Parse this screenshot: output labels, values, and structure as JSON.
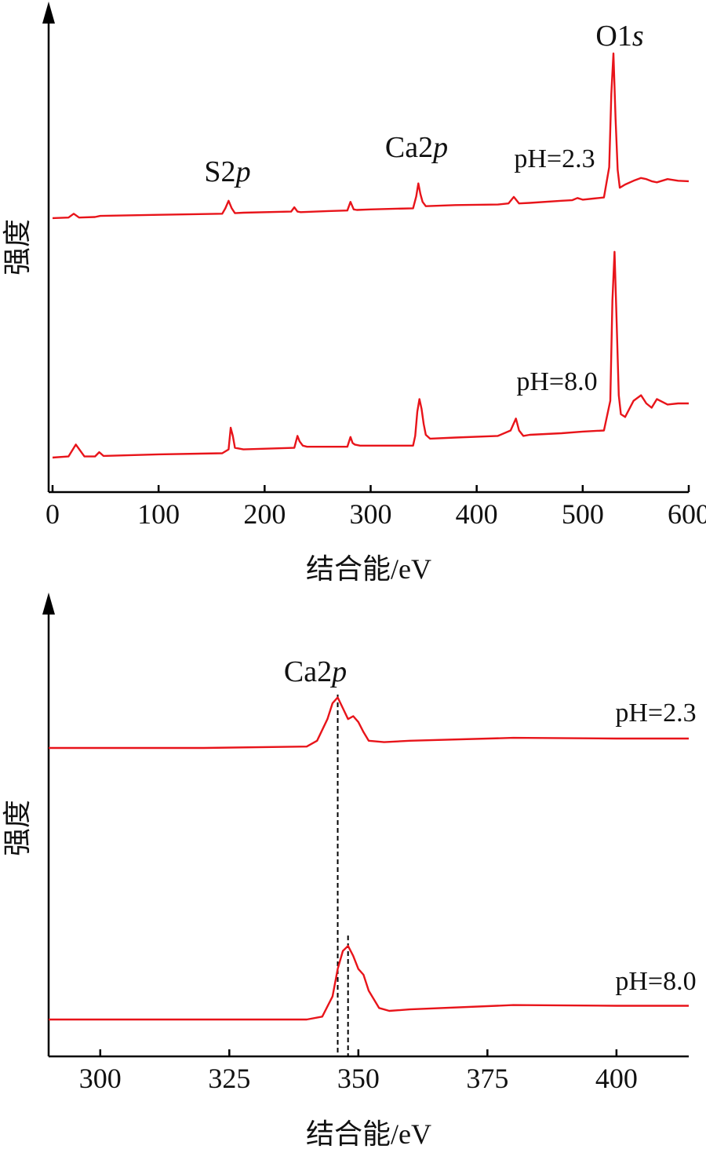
{
  "chart_data": [
    {
      "type": "line",
      "xlabel": "结合能/eV",
      "ylabel": "强度",
      "xlim": [
        0,
        600
      ],
      "xticks": [
        "0",
        "100",
        "200",
        "300",
        "400",
        "500",
        "600"
      ],
      "grid": false,
      "annotations": [
        {
          "text": "S2",
          "italic": "p",
          "x": 167
        },
        {
          "text": "Ca2",
          "italic": "p",
          "x": 345
        },
        {
          "text": "O1",
          "italic": "s",
          "x": 530
        }
      ],
      "series": [
        {
          "name": "pH=2.3",
          "color": "#e8141a",
          "x": [
            0,
            15,
            20,
            25,
            40,
            45,
            100,
            160,
            163,
            166,
            169,
            172,
            180,
            225,
            228,
            231,
            234,
            260,
            278,
            281,
            284,
            287,
            300,
            340,
            343,
            345,
            347,
            349,
            352,
            380,
            420,
            430,
            435,
            440,
            450,
            480,
            490,
            495,
            500,
            510,
            520,
            525,
            527,
            529,
            531,
            533,
            535,
            540,
            548,
            555,
            560,
            565,
            570,
            580,
            590,
            600
          ],
          "y": [
            0.06,
            0.07,
            0.14,
            0.07,
            0.08,
            0.1,
            0.12,
            0.14,
            0.24,
            0.38,
            0.24,
            0.15,
            0.16,
            0.18,
            0.26,
            0.18,
            0.17,
            0.19,
            0.2,
            0.36,
            0.22,
            0.21,
            0.22,
            0.24,
            0.46,
            0.7,
            0.5,
            0.36,
            0.28,
            0.3,
            0.31,
            0.33,
            0.45,
            0.33,
            0.34,
            0.38,
            0.39,
            0.43,
            0.4,
            0.42,
            0.44,
            1.0,
            2.35,
            3.1,
            1.9,
            0.95,
            0.62,
            0.68,
            0.75,
            0.8,
            0.78,
            0.74,
            0.72,
            0.78,
            0.75,
            0.74
          ]
        },
        {
          "name": "pH=8.0",
          "color": "#e8141a",
          "x": [
            0,
            15,
            22,
            30,
            40,
            44,
            48,
            100,
            160,
            166,
            168,
            170,
            172,
            180,
            228,
            231,
            233,
            236,
            240,
            278,
            281,
            283,
            285,
            290,
            340,
            342,
            344,
            346,
            348,
            350,
            352,
            356,
            380,
            420,
            432,
            437,
            440,
            444,
            450,
            480,
            500,
            520,
            526,
            528,
            530,
            532,
            534,
            536,
            540,
            548,
            555,
            560,
            565,
            570,
            580,
            590,
            600
          ],
          "y": [
            0.0,
            0.02,
            0.24,
            0.02,
            0.02,
            0.1,
            0.03,
            0.06,
            0.08,
            0.15,
            0.55,
            0.4,
            0.18,
            0.15,
            0.18,
            0.4,
            0.3,
            0.22,
            0.2,
            0.2,
            0.38,
            0.27,
            0.24,
            0.22,
            0.22,
            0.4,
            0.85,
            1.08,
            0.9,
            0.62,
            0.42,
            0.35,
            0.37,
            0.4,
            0.5,
            0.72,
            0.5,
            0.4,
            0.42,
            0.45,
            0.48,
            0.5,
            1.05,
            2.9,
            3.8,
            2.5,
            1.15,
            0.8,
            0.75,
            1.05,
            1.15,
            1.0,
            0.92,
            1.08,
            0.98,
            1.0,
            1.0
          ]
        }
      ]
    },
    {
      "type": "line",
      "xlabel": "结合能/eV",
      "ylabel": "强度",
      "xlim": [
        290,
        414
      ],
      "xticks": [
        "300",
        "325",
        "350",
        "375",
        "400"
      ],
      "grid": false,
      "annotations": [
        {
          "text": "Ca2",
          "italic": "p",
          "x": 345.5
        }
      ],
      "reference_lines_x": [
        346,
        348
      ],
      "series": [
        {
          "name": "pH=2.3",
          "color": "#e8141a",
          "x": [
            290,
            300,
            320,
            340,
            342,
            344,
            345,
            346,
            347,
            348,
            349,
            350,
            351,
            352,
            355,
            360,
            380,
            400,
            414
          ],
          "y": [
            0.0,
            0.0,
            0.0,
            0.02,
            0.1,
            0.4,
            0.62,
            0.7,
            0.55,
            0.4,
            0.44,
            0.36,
            0.22,
            0.1,
            0.08,
            0.1,
            0.14,
            0.13,
            0.13
          ]
        },
        {
          "name": "pH=8.0",
          "color": "#e8141a",
          "x": [
            290,
            300,
            320,
            340,
            343,
            345,
            346,
            347,
            348,
            349,
            350,
            351,
            352,
            354,
            356,
            360,
            380,
            400,
            414
          ],
          "y": [
            0.0,
            0.0,
            0.0,
            0.0,
            0.04,
            0.32,
            0.7,
            0.95,
            1.02,
            0.88,
            0.7,
            0.62,
            0.4,
            0.16,
            0.12,
            0.14,
            0.2,
            0.19,
            0.19
          ]
        }
      ]
    }
  ]
}
